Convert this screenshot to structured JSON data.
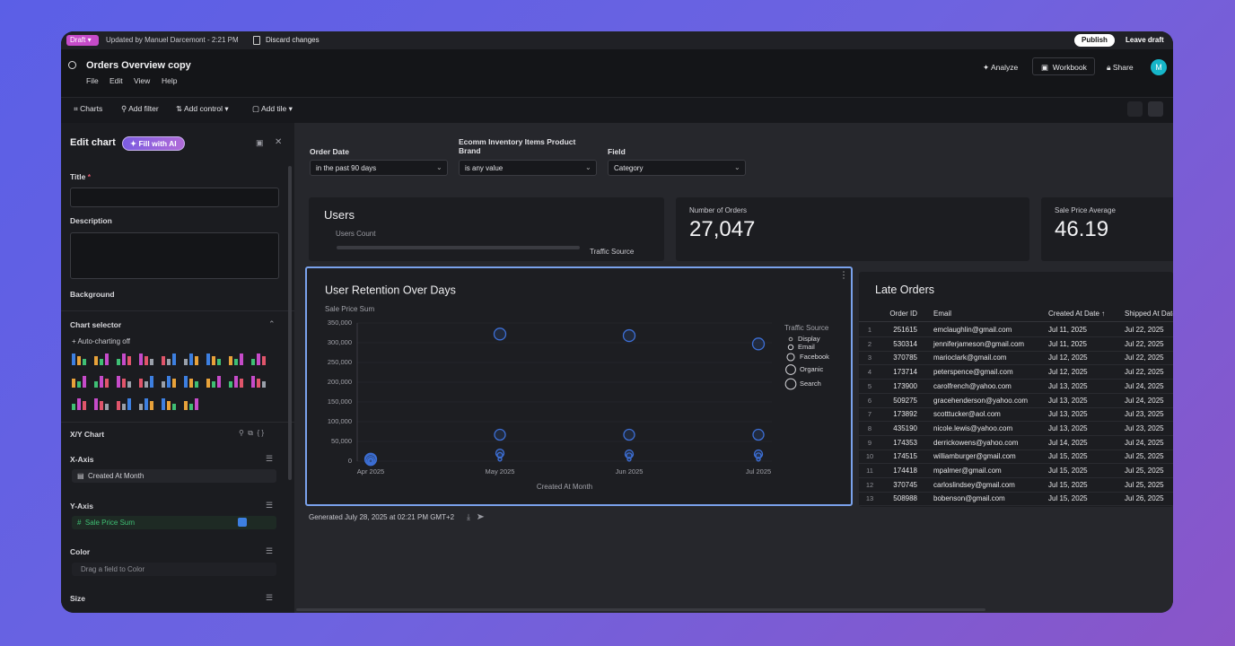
{
  "topbar": {
    "badge": "Draft",
    "updated": "Updated by Manuel Darcemont - 2:21 PM",
    "discard": "Discard changes",
    "publish": "Publish",
    "leave": "Leave draft"
  },
  "header": {
    "title": "Orders Overview copy",
    "menu": [
      "File",
      "Edit",
      "View",
      "Help"
    ],
    "analyze": "Analyze",
    "workbook": "Workbook",
    "share": "Share",
    "avatar": "M"
  },
  "toolbar": [
    "Charts",
    "Add filter",
    "Add control",
    "Add tile"
  ],
  "panel": {
    "heading": "Edit chart",
    "fill_ai": "Fill with AI",
    "title_label": "Title",
    "required": "*",
    "description_label": "Description",
    "background_label": "Background",
    "chart_selector": "Chart selector",
    "auto_charting": "Auto-charting off",
    "chart_kind": "X/Y Chart",
    "x_axis": "X-Axis",
    "x_field": "Created At Month",
    "y_axis": "Y-Axis",
    "y_field": "Sale Price Sum",
    "color_label": "Color",
    "color_drop": "Drag a field to Color",
    "size_label": "Size"
  },
  "filters": [
    {
      "label": "Order Date",
      "value": "in the past 90 days"
    },
    {
      "label": "Ecomm Inventory Items Product Brand",
      "value": "is any value"
    },
    {
      "label": "Field",
      "value": "Category"
    }
  ],
  "tiles": {
    "users": {
      "title": "Users",
      "subtitle": "Users Count",
      "legend": "Traffic Source"
    },
    "kpis": [
      {
        "label": "Number of Orders",
        "value": "27,047"
      },
      {
        "label": "Sale Price Average",
        "value": "46.19"
      }
    ]
  },
  "chart_data": {
    "type": "scatter",
    "title": "User Retention Over Days",
    "y_label": "Sale Price Sum",
    "x_label": "Created At Month",
    "legend_title": "Traffic Source",
    "categories": [
      "Apr 2025",
      "May 2025",
      "Jun 2025",
      "Jul 2025"
    ],
    "ylim": [
      0,
      350000
    ],
    "yticks": [
      0,
      {
        "value": 50000,
        "label": "50,000"
      },
      {
        "value": 100000,
        "label": "100,000"
      },
      {
        "value": 150000,
        "label": "150,000"
      },
      {
        "value": 200000,
        "label": "200,000"
      },
      {
        "value": 250000,
        "label": "250,000"
      },
      {
        "value": 300000,
        "label": "300,000"
      },
      {
        "value": 350000,
        "label": "350,000"
      }
    ],
    "series": [
      {
        "name": "Display",
        "color": "#3d6fd6",
        "values": [
          500,
          5000,
          5000,
          5000
        ]
      },
      {
        "name": "Email",
        "color": "#3d6fd6",
        "values": [
          1000,
          15000,
          14000,
          14000
        ]
      },
      {
        "name": "Facebook",
        "color": "#3d6fd6",
        "values": [
          2000,
          20000,
          18000,
          18000
        ]
      },
      {
        "name": "Organic",
        "color": "#3d6fd6",
        "values": [
          3000,
          67000,
          67000,
          67000
        ]
      },
      {
        "name": "Search",
        "color": "#3d6fd6",
        "values": [
          5000,
          322000,
          318000,
          297000
        ]
      }
    ]
  },
  "table": {
    "title": "Late Orders",
    "columns": [
      "Order ID",
      "Email",
      "Created At Date ↑",
      "Shipped At Date"
    ],
    "rows": [
      [
        1,
        "251615",
        "emclaughlin@gmail.com",
        "Jul 11, 2025",
        "Jul 22, 2025"
      ],
      [
        2,
        "530314",
        "jenniferjameson@gmail.com",
        "Jul 11, 2025",
        "Jul 22, 2025"
      ],
      [
        3,
        "370785",
        "marioclark@gmail.com",
        "Jul 12, 2025",
        "Jul 22, 2025"
      ],
      [
        4,
        "173714",
        "peterspence@gmail.com",
        "Jul 12, 2025",
        "Jul 22, 2025"
      ],
      [
        5,
        "173900",
        "carolfrench@yahoo.com",
        "Jul 13, 2025",
        "Jul 24, 2025"
      ],
      [
        6,
        "509275",
        "gracehenderson@yahoo.com",
        "Jul 13, 2025",
        "Jul 24, 2025"
      ],
      [
        7,
        "173892",
        "scotttucker@aol.com",
        "Jul 13, 2025",
        "Jul 23, 2025"
      ],
      [
        8,
        "435190",
        "nicole.lewis@yahoo.com",
        "Jul 13, 2025",
        "Jul 23, 2025"
      ],
      [
        9,
        "174353",
        "derrickowens@yahoo.com",
        "Jul 14, 2025",
        "Jul 24, 2025"
      ],
      [
        10,
        "174515",
        "williamburger@gmail.com",
        "Jul 15, 2025",
        "Jul 25, 2025"
      ],
      [
        11,
        "174418",
        "mpalmer@gmail.com",
        "Jul 15, 2025",
        "Jul 25, 2025"
      ],
      [
        12,
        "370745",
        "carloslindsey@gmail.com",
        "Jul 15, 2025",
        "Jul 25, 2025"
      ],
      [
        13,
        "508988",
        "bobenson@gmail.com",
        "Jul 15, 2025",
        "Jul 26, 2025"
      ]
    ]
  },
  "footer": "Generated July 28, 2025 at 02:21 PM GMT+2"
}
